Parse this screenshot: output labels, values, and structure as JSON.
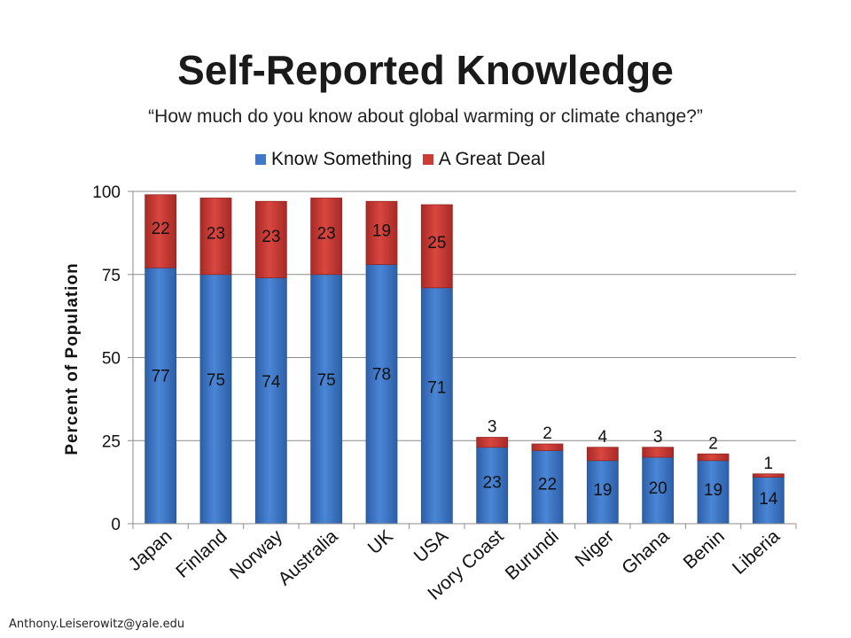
{
  "chart_data": {
    "type": "bar",
    "stacked": true,
    "title": "Self-Reported Knowledge",
    "subtitle": "“How much do you know about global warming or climate change?”",
    "ylabel": "Percent of Population",
    "ylim": [
      0,
      100
    ],
    "yticks": [
      "0",
      "25",
      "50",
      "75",
      "100"
    ],
    "grid": true,
    "legend_position": "top",
    "categories": [
      "Japan",
      "Finland",
      "Norway",
      "Australia",
      "UK",
      "USA",
      "Ivory Coast",
      "Burundi",
      "Niger",
      "Ghana",
      "Benin",
      "Liberia"
    ],
    "series": [
      {
        "name": "Know Something",
        "color": "#3f78c8",
        "values": [
          77,
          75,
          74,
          75,
          78,
          71,
          23,
          22,
          19,
          20,
          19,
          14
        ]
      },
      {
        "name": "A Great Deal",
        "color": "#cc3b35",
        "values": [
          22,
          23,
          23,
          23,
          19,
          25,
          3,
          2,
          4,
          3,
          2,
          1
        ]
      }
    ]
  },
  "footer": {
    "email": "Anthony.Leiserowitz@yale.edu"
  }
}
